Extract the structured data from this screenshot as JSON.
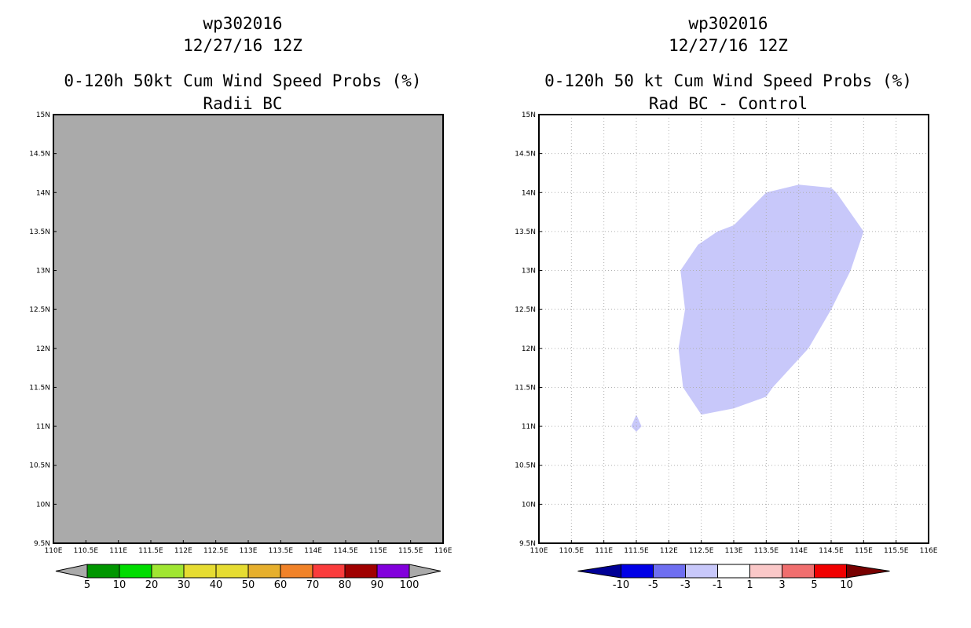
{
  "colors": {
    "grey_fill": "#aaaaaa",
    "diff_fill": "#c8c8fa",
    "grid": "#b0b0b0"
  },
  "icons": {
    "colorbar_end_left": "triangle-left",
    "colorbar_end_right": "triangle-right"
  },
  "chart_data": [
    {
      "type": "heatmap",
      "storm_id": "wp302016",
      "date": "12/27/16 12Z",
      "title": "0-120h 50kt Cum Wind Speed Probs (%)",
      "subtitle": "Radii BC",
      "xlim": [
        110,
        116
      ],
      "ylim": [
        9.5,
        15
      ],
      "x_ticks": [
        110,
        110.5,
        111,
        111.5,
        112,
        112.5,
        113,
        113.5,
        114,
        114.5,
        115,
        115.5,
        116
      ],
      "y_ticks": [
        9.5,
        10,
        10.5,
        11,
        11.5,
        12,
        12.5,
        13,
        13.5,
        14,
        14.5,
        15
      ],
      "x_tick_labels": [
        "110E",
        "110.5E",
        "111E",
        "111.5E",
        "112E",
        "112.5E",
        "113E",
        "113.5E",
        "114E",
        "114.5E",
        "115E",
        "115.5E",
        "116E"
      ],
      "y_tick_labels": [
        "9.5N",
        "10N",
        "10.5N",
        "11N",
        "11.5N",
        "12N",
        "12.5N",
        "13N",
        "13.5N",
        "14N",
        "14.5N",
        "15N"
      ],
      "grid": false,
      "field": "below lowest contour (<5%) everywhere",
      "background": "#aaaaaa",
      "colorbar": {
        "labels": [
          "5",
          "10",
          "20",
          "30",
          "40",
          "50",
          "60",
          "70",
          "80",
          "90",
          "100"
        ],
        "colors": [
          "#009600",
          "#00dc00",
          "#a0e632",
          "#e6dc32",
          "#e6dc32",
          "#e6af2d",
          "#f08228",
          "#fa3c3c",
          "#a00000",
          "#8200dc"
        ],
        "under_color": "#aaaaaa",
        "over_color": "#aaaaaa"
      }
    },
    {
      "type": "heatmap",
      "storm_id": "wp302016",
      "date": "12/27/16 12Z",
      "title": "0-120h 50 kt Cum Wind Speed Probs (%)",
      "subtitle": "Rad BC - Control",
      "xlim": [
        110,
        116
      ],
      "ylim": [
        9.5,
        15
      ],
      "x_ticks": [
        110,
        110.5,
        111,
        111.5,
        112,
        112.5,
        113,
        113.5,
        114,
        114.5,
        115,
        115.5,
        116
      ],
      "y_ticks": [
        9.5,
        10,
        10.5,
        11,
        11.5,
        12,
        12.5,
        13,
        13.5,
        14,
        14.5,
        15
      ],
      "x_tick_labels": [
        "110E",
        "110.5E",
        "111E",
        "111.5E",
        "112E",
        "112.5E",
        "113E",
        "113.5E",
        "114E",
        "114.5E",
        "115E",
        "115.5E",
        "116E"
      ],
      "y_tick_labels": [
        "9.5N",
        "10N",
        "10.5N",
        "11N",
        "11.5N",
        "12N",
        "12.5N",
        "13N",
        "13.5N",
        "14N",
        "14.5N",
        "15N"
      ],
      "grid": true,
      "regions": [
        {
          "name": "main-region",
          "range": "-3 to -1",
          "polygon": [
            [
              112.18,
              13.0
            ],
            [
              112.45,
              13.33
            ],
            [
              112.75,
              13.5
            ],
            [
              113.0,
              13.58
            ],
            [
              113.5,
              14.0
            ],
            [
              114.0,
              14.1
            ],
            [
              114.5,
              14.06
            ],
            [
              114.58,
              14.0
            ],
            [
              115.0,
              13.5
            ],
            [
              114.8,
              13.0
            ],
            [
              114.5,
              12.5
            ],
            [
              114.15,
              12.0
            ],
            [
              113.6,
              11.5
            ],
            [
              113.5,
              11.38
            ],
            [
              113.0,
              11.23
            ],
            [
              112.5,
              11.15
            ],
            [
              112.22,
              11.5
            ],
            [
              112.15,
              12.0
            ],
            [
              112.25,
              12.5
            ],
            [
              112.18,
              13.0
            ]
          ]
        },
        {
          "name": "small-region",
          "range": "-3 to -1",
          "polygon": [
            [
              111.5,
              11.15
            ],
            [
              111.58,
              11.0
            ],
            [
              111.5,
              10.93
            ],
            [
              111.42,
              11.0
            ],
            [
              111.5,
              11.15
            ]
          ]
        }
      ],
      "colorbar": {
        "labels": [
          "-10",
          "-5",
          "-3",
          "-1",
          "1",
          "3",
          "5",
          "10"
        ],
        "colors": [
          "#0000e6",
          "#6e6ef0",
          "#c8c8fa",
          "#ffffff",
          "#fac8c8",
          "#f06e6e",
          "#f00000"
        ],
        "under_color": "#000096",
        "over_color": "#780000"
      }
    }
  ]
}
